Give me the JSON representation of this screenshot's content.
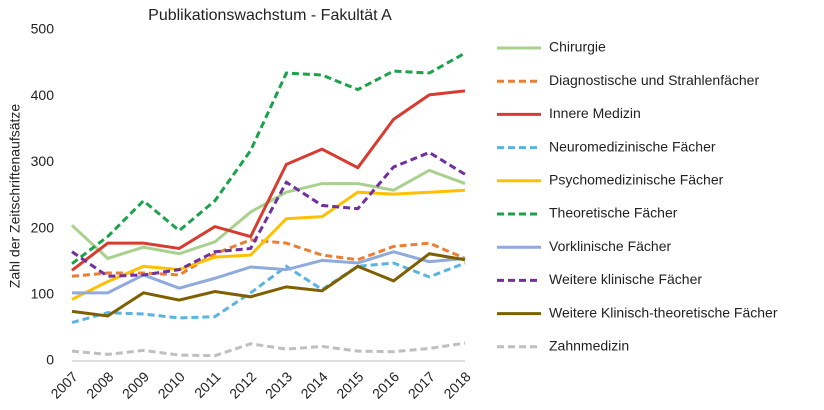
{
  "chart_data": {
    "type": "line",
    "title": "Publikationswachstum - Fakultät A",
    "ylabel": "Zahl der Zeitschriftenaufsätze",
    "categories": [
      "2007",
      "2008",
      "2009",
      "2010",
      "2011",
      "2012",
      "2013",
      "2014",
      "2015",
      "2016",
      "2017",
      "2018"
    ],
    "ylim": [
      0,
      500
    ],
    "yticks": [
      0,
      100,
      200,
      300,
      400,
      500
    ],
    "grid": false,
    "legend": "right",
    "series": [
      {
        "name": "Chirurgie",
        "color": "#a9d18e",
        "dashed": false,
        "values": [
          205,
          155,
          172,
          162,
          180,
          225,
          255,
          268,
          268,
          258,
          288,
          268
        ]
      },
      {
        "name": "Diagnostische und Strahlenfächer",
        "color": "#ed7d31",
        "dashed": true,
        "values": [
          128,
          133,
          133,
          130,
          162,
          183,
          178,
          160,
          153,
          173,
          178,
          155
        ]
      },
      {
        "name": "Innere Medizin",
        "color": "#d83b2f",
        "dashed": false,
        "values": [
          137,
          178,
          178,
          170,
          203,
          188,
          297,
          320,
          292,
          365,
          402,
          408
        ]
      },
      {
        "name": "Neuromedizinische Fächer",
        "color": "#5ab4e0",
        "dashed": true,
        "values": [
          58,
          73,
          71,
          65,
          67,
          103,
          143,
          108,
          143,
          148,
          127,
          148
        ]
      },
      {
        "name": "Psychomedizinische Fächer",
        "color": "#ffc000",
        "dashed": false,
        "values": [
          93,
          120,
          143,
          138,
          157,
          160,
          215,
          218,
          255,
          252,
          255,
          258
        ]
      },
      {
        "name": "Theoretische Fächer",
        "color": "#1aa34a",
        "dashed": true,
        "values": [
          147,
          188,
          242,
          197,
          242,
          318,
          435,
          432,
          410,
          438,
          435,
          465
        ]
      },
      {
        "name": "Vorklinische Fächer",
        "color": "#8faadc",
        "dashed": false,
        "values": [
          103,
          103,
          130,
          110,
          125,
          142,
          138,
          152,
          148,
          165,
          150,
          155
        ]
      },
      {
        "name": "Weitere klinische Fächer",
        "color": "#7030a0",
        "dashed": true,
        "values": [
          165,
          128,
          130,
          138,
          165,
          170,
          270,
          235,
          230,
          293,
          315,
          282
        ]
      },
      {
        "name": "Weitere Klinisch-theoretische Fächer",
        "color": "#7f6000",
        "dashed": false,
        "values": [
          75,
          68,
          103,
          92,
          105,
          97,
          112,
          106,
          143,
          121,
          162,
          153
        ]
      },
      {
        "name": "Zahnmedizin",
        "color": "#bfbfbf",
        "dashed": true,
        "values": [
          15,
          10,
          16,
          9,
          8,
          26,
          18,
          22,
          15,
          14,
          19,
          27
        ]
      }
    ]
  }
}
